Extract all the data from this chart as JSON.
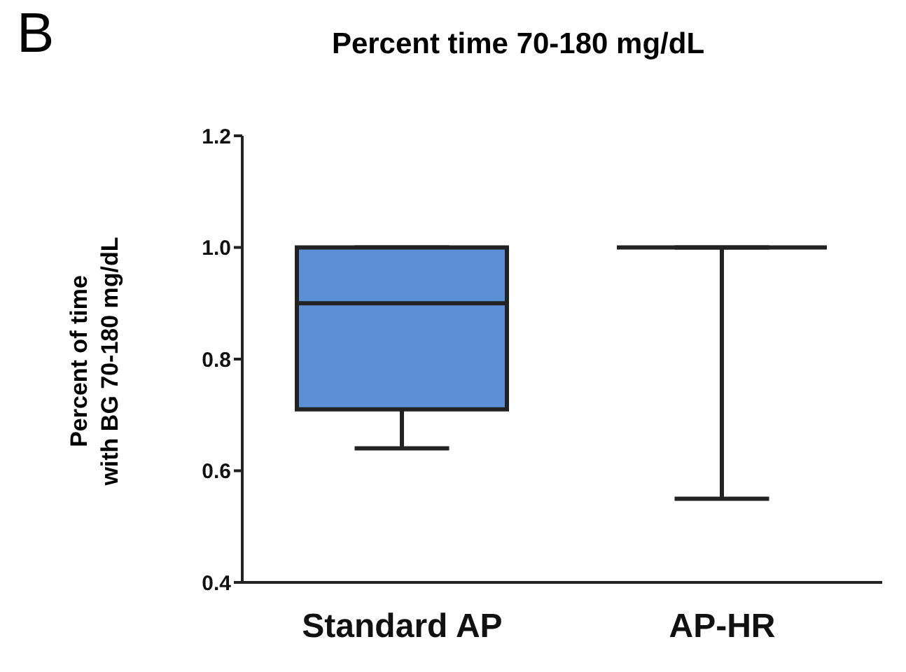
{
  "chart_data": {
    "type": "box",
    "title": "Percent time 70-180 mg/dL",
    "ylabel": "Percent of time with BG 70-180 mg/dL",
    "annotations": [
      "B"
    ],
    "categories": [
      "Standard AP",
      "AP-HR"
    ],
    "series": [
      {
        "colors": [
          "#5b8fd6",
          "#222222"
        ],
        "boxes": [
          {
            "low": 0.64,
            "q1": 0.71,
            "median": 0.9,
            "q3": 1.0,
            "high": 1.0
          },
          {
            "low": 0.55,
            "q1": 1.0,
            "median": 1.0,
            "q3": 1.0,
            "high": 1.0
          }
        ]
      }
    ],
    "ylim": [
      0.4,
      1.2
    ],
    "yticks": [
      {
        "value": 0.4,
        "label": "0.4"
      },
      {
        "value": 0.6,
        "label": "0.6"
      },
      {
        "value": 0.8,
        "label": "0.8"
      },
      {
        "value": 1.0,
        "label": "1.0"
      },
      {
        "value": 1.2,
        "label": "1.2"
      }
    ],
    "grid": false,
    "legend": false
  }
}
